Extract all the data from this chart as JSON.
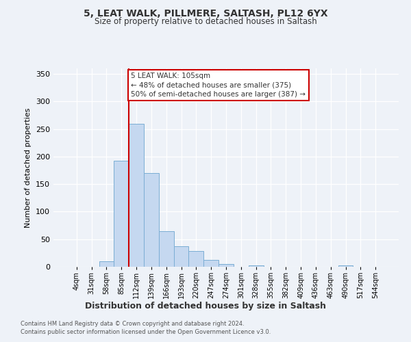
{
  "title_line1": "5, LEAT WALK, PILLMERE, SALTASH, PL12 6YX",
  "title_line2": "Size of property relative to detached houses in Saltash",
  "xlabel": "Distribution of detached houses by size in Saltash",
  "ylabel": "Number of detached properties",
  "bar_labels": [
    "4sqm",
    "31sqm",
    "58sqm",
    "85sqm",
    "112sqm",
    "139sqm",
    "166sqm",
    "193sqm",
    "220sqm",
    "247sqm",
    "274sqm",
    "301sqm",
    "328sqm",
    "355sqm",
    "382sqm",
    "409sqm",
    "436sqm",
    "463sqm",
    "490sqm",
    "517sqm",
    "544sqm"
  ],
  "bar_values": [
    0,
    0,
    10,
    192,
    260,
    170,
    65,
    37,
    29,
    13,
    5,
    0,
    3,
    0,
    0,
    0,
    0,
    0,
    2,
    0,
    0
  ],
  "bar_color": "#c5d8f0",
  "bar_edge_color": "#7aadd4",
  "ylim": [
    0,
    360
  ],
  "yticks": [
    0,
    50,
    100,
    150,
    200,
    250,
    300,
    350
  ],
  "vline_x": 3.5,
  "vline_color": "#cc0000",
  "annotation_title": "5 LEAT WALK: 105sqm",
  "annotation_line2": "← 48% of detached houses are smaller (375)",
  "annotation_line3": "50% of semi-detached houses are larger (387) →",
  "annotation_box_color": "#ffffff",
  "annotation_box_edge": "#cc0000",
  "footer_line1": "Contains HM Land Registry data © Crown copyright and database right 2024.",
  "footer_line2": "Contains public sector information licensed under the Open Government Licence v3.0.",
  "background_color": "#eef2f8"
}
